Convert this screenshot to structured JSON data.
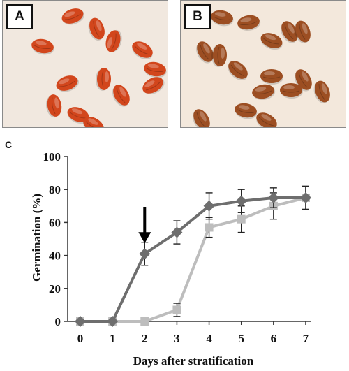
{
  "panels": {
    "a_label": "A",
    "b_label": "B",
    "c_label": "C",
    "a_background": "#f1e8df",
    "a_seed_color": "#d2461c",
    "b_background": "#f3e8dc",
    "b_seed_color": "#9c4e22"
  },
  "chart_data": {
    "type": "line",
    "title": "",
    "xlabel": "Days after stratification",
    "ylabel": "Germination (%)",
    "xlim": [
      0,
      7
    ],
    "ylim": [
      0,
      100
    ],
    "x_ticks": [
      "0",
      "1",
      "2",
      "3",
      "4",
      "5",
      "6",
      "7"
    ],
    "y_ticks": [
      "0",
      "20",
      "40",
      "60",
      "80",
      "100"
    ],
    "grid": false,
    "legend": "none",
    "annotation": {
      "type": "arrow",
      "x": 2,
      "points_to_y": 41
    },
    "series": [
      {
        "color": "#6e6e6e",
        "marker": "diamond",
        "x": [
          0,
          1,
          2,
          3,
          4,
          5,
          6,
          7
        ],
        "values": [
          0,
          0,
          41,
          54,
          70,
          73,
          75,
          75
        ],
        "error": [
          0,
          0,
          7,
          7,
          8,
          7,
          6,
          7
        ]
      },
      {
        "color": "#bdbdbd",
        "marker": "square",
        "x": [
          0,
          1,
          2,
          3,
          4,
          5,
          6,
          7
        ],
        "values": [
          0,
          0,
          0,
          7,
          57,
          62,
          70,
          75
        ],
        "error": [
          0,
          0,
          0,
          4,
          6,
          8,
          8,
          7
        ]
      }
    ]
  }
}
